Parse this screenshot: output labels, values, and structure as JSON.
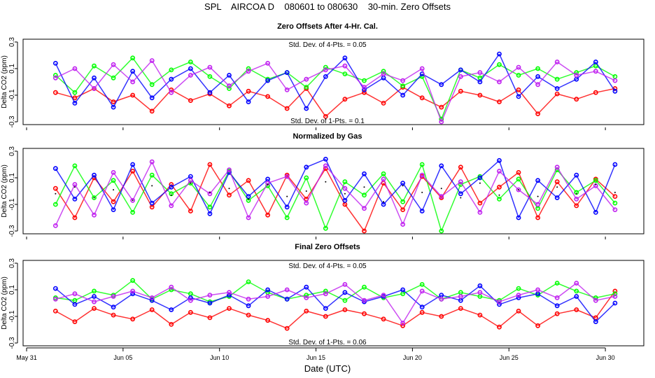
{
  "title": "SPL    AIRCOA D    080601 to 080630    30-min. Zero Offsets",
  "chart_data": [
    {
      "type": "scatter",
      "title": "Zero Offsets After 4-Hr. Cal.",
      "ylabel": "Delta CO2 (ppm)",
      "ylim": [
        -0.31,
        0.31
      ],
      "yticks": [
        "-0.3",
        "-0.1",
        "0.1",
        "0.3"
      ],
      "annotations": [
        "Std. Dev. of 4-Pts. = 0.05",
        "Std. Dev. of 1-Pts. = 0.1"
      ],
      "series": [
        {
          "color": "#ff0000",
          "values": [
            -0.08,
            -0.12,
            -0.05,
            -0.15,
            -0.1,
            -0.22,
            -0.06,
            -0.14,
            -0.09,
            -0.18,
            -0.07,
            -0.11,
            -0.2,
            -0.05,
            -0.26,
            -0.13,
            -0.08,
            -0.16,
            -0.04,
            -0.12,
            -0.19,
            -0.07,
            -0.1,
            -0.15,
            -0.06,
            -0.24,
            -0.09,
            -0.13,
            -0.08,
            -0.05
          ]
        },
        {
          "color": "#00ff00",
          "values": [
            0.05,
            -0.08,
            0.12,
            0.03,
            0.18,
            -0.02,
            0.09,
            0.15,
            0.04,
            -0.05,
            0.1,
            0.02,
            0.07,
            -0.04,
            0.11,
            0.06,
            0.01,
            0.08,
            -0.03,
            0.04,
            -0.28,
            0.09,
            0.03,
            0.13,
            0.05,
            0.1,
            0.02,
            0.07,
            0.12,
            0.04
          ]
        },
        {
          "color": "#0000ff",
          "values": [
            0.14,
            -0.16,
            0.03,
            -0.19,
            0.08,
            -0.12,
            0.02,
            0.1,
            -0.08,
            0.05,
            -0.15,
            0.01,
            0.07,
            -0.2,
            0.04,
            0.18,
            -0.06,
            0.03,
            -0.1,
            0.06,
            -0.02,
            0.09,
            0.0,
            0.21,
            -0.11,
            0.04,
            -0.05,
            0.02,
            0.15,
            -0.07
          ]
        },
        {
          "color": "#c020f0",
          "values": [
            0.03,
            0.1,
            -0.05,
            0.13,
            0.0,
            0.16,
            -0.08,
            0.05,
            0.11,
            -0.03,
            0.08,
            0.14,
            -0.06,
            0.02,
            0.09,
            0.12,
            -0.04,
            0.06,
            0.01,
            0.1,
            -0.3,
            0.04,
            0.07,
            0.0,
            0.11,
            -0.02,
            0.15,
            0.05,
            0.08,
            0.01
          ]
        }
      ]
    },
    {
      "type": "scatter",
      "title": "Normalized by Gas",
      "ylabel": "Delta CO2 (ppm)",
      "ylim": [
        -0.31,
        0.31
      ],
      "yticks": [
        "-0.3",
        "-0.1",
        "0.1",
        "0.3"
      ],
      "annotations": [],
      "series": [
        {
          "color": "#ff0000",
          "values": [
            0.02,
            -0.2,
            0.1,
            -0.08,
            0.15,
            -0.12,
            0.05,
            -0.15,
            0.2,
            -0.03,
            0.08,
            -0.18,
            0.12,
            -0.06,
            0.17,
            -0.1,
            -0.3,
            0.06,
            -0.14,
            0.11,
            -0.05,
            0.18,
            -0.09,
            0.03,
            0.14,
            -0.2,
            0.07,
            -0.11,
            0.09,
            -0.04
          ]
        },
        {
          "color": "#00ff00",
          "values": [
            -0.1,
            0.19,
            -0.05,
            0.08,
            -0.16,
            0.12,
            -0.02,
            0.06,
            -0.12,
            0.15,
            -0.07,
            0.04,
            -0.2,
            0.1,
            -0.28,
            0.07,
            -0.03,
            0.13,
            -0.08,
            0.2,
            -0.3,
            0.05,
            0.11,
            -0.06,
            0.09,
            -0.13,
            0.16,
            -0.01,
            0.08,
            -0.09
          ]
        },
        {
          "color": "#0000ff",
          "values": [
            0.17,
            -0.06,
            0.12,
            -0.14,
            0.2,
            -0.09,
            0.03,
            0.11,
            -0.17,
            0.14,
            -0.04,
            0.09,
            -0.12,
            0.18,
            0.24,
            -0.07,
            0.13,
            -0.1,
            0.06,
            -0.15,
            0.19,
            -0.02,
            0.1,
            0.23,
            -0.2,
            0.08,
            -0.05,
            0.12,
            -0.16,
            0.2
          ]
        },
        {
          "color": "#c020f0",
          "values": [
            -0.26,
            0.05,
            -0.18,
            0.14,
            -0.07,
            0.22,
            -0.11,
            0.08,
            -0.02,
            0.16,
            -0.2,
            0.06,
            0.11,
            -0.09,
            0.19,
            0.02,
            -0.13,
            0.09,
            -0.25,
            0.12,
            -0.04,
            0.07,
            -0.16,
            0.15,
            0.01,
            -0.1,
            0.18,
            -0.06,
            0.04,
            -0.14
          ]
        },
        {
          "color": "#000000",
          "marker": "dot",
          "values": [
            -0.02,
            0.03,
            -0.05,
            0.01,
            -0.07,
            0.04,
            -0.03,
            0.06,
            -0.01,
            0.02,
            -0.06,
            0.05,
            -0.04,
            0.0,
            0.07,
            -0.02,
            0.03,
            -0.08,
            0.04,
            -0.01,
            0.02,
            -0.05,
            0.06,
            -0.03,
            0.01,
            -0.04,
            0.03,
            -0.02,
            0.05,
            -0.01
          ]
        }
      ]
    },
    {
      "type": "scatter",
      "title": "Final Zero Offsets",
      "ylabel": "Delta CO2 (ppm)",
      "xlabel": "Date (UTC)",
      "ylim": [
        -0.31,
        0.31
      ],
      "yticks": [
        "-0.3",
        "-0.1",
        "0.1",
        "0.3"
      ],
      "xticks": [
        "May 31",
        "Jun 05",
        "Jun 10",
        "Jun 15",
        "Jun 20",
        "Jun 25",
        "Jun 30"
      ],
      "xlim": [
        "2008-05-30T19:00",
        "2008-07-02T00:00"
      ],
      "annotations": [
        "Std. Dev. of 4-Pts. = 0.05",
        "Std. Dev. of 1-Pts. = 0.06"
      ],
      "series": [
        {
          "color": "#ff0000",
          "values": [
            -0.06,
            -0.14,
            -0.04,
            -0.09,
            -0.12,
            -0.05,
            -0.16,
            -0.07,
            -0.11,
            -0.04,
            -0.09,
            -0.13,
            -0.19,
            -0.06,
            -0.1,
            -0.05,
            -0.08,
            -0.12,
            -0.17,
            -0.07,
            -0.1,
            -0.04,
            -0.09,
            -0.18,
            -0.06,
            -0.17,
            -0.08,
            -0.05,
            -0.11,
            0.09
          ]
        },
        {
          "color": "#00ff00",
          "values": [
            0.04,
            0.02,
            0.09,
            0.06,
            0.17,
            0.03,
            0.1,
            0.07,
            0.01,
            0.05,
            0.16,
            0.08,
            0.03,
            0.06,
            0.09,
            0.02,
            0.12,
            0.04,
            0.07,
            0.14,
            0.03,
            0.08,
            0.05,
            0.02,
            0.11,
            0.06,
            0.15,
            0.09,
            0.04,
            0.07
          ]
        },
        {
          "color": "#0000ff",
          "values": [
            0.11,
            -0.01,
            0.05,
            -0.03,
            0.07,
            0.02,
            -0.05,
            0.04,
            0.0,
            0.06,
            -0.02,
            0.1,
            0.03,
            0.12,
            -0.04,
            0.08,
            0.01,
            0.05,
            0.1,
            -0.03,
            0.06,
            0.02,
            0.13,
            -0.01,
            0.04,
            0.07,
            -0.02,
            0.05,
            -0.14,
            0.0
          ]
        },
        {
          "color": "#c020f0",
          "values": [
            0.03,
            0.07,
            0.01,
            0.05,
            0.09,
            0.04,
            0.12,
            0.02,
            0.06,
            0.08,
            0.03,
            0.05,
            0.1,
            0.04,
            0.07,
            0.14,
            0.02,
            0.06,
            -0.15,
            0.09,
            0.03,
            0.05,
            0.08,
            0.01,
            0.06,
            0.1,
            0.04,
            0.15,
            0.02,
            0.05
          ]
        }
      ]
    }
  ],
  "x": [
    "2008-06-01T12:00",
    "2008-06-02T12:00",
    "2008-06-03T12:00",
    "2008-06-04T12:00",
    "2008-06-05T12:00",
    "2008-06-06T12:00",
    "2008-06-07T12:00",
    "2008-06-08T12:00",
    "2008-06-09T12:00",
    "2008-06-10T12:00",
    "2008-06-11T12:00",
    "2008-06-12T12:00",
    "2008-06-13T12:00",
    "2008-06-14T12:00",
    "2008-06-15T12:00",
    "2008-06-16T12:00",
    "2008-06-17T12:00",
    "2008-06-18T12:00",
    "2008-06-19T12:00",
    "2008-06-20T12:00",
    "2008-06-21T12:00",
    "2008-06-22T12:00",
    "2008-06-23T12:00",
    "2008-06-24T12:00",
    "2008-06-25T12:00",
    "2008-06-26T12:00",
    "2008-06-27T12:00",
    "2008-06-28T12:00",
    "2008-06-29T12:00",
    "2008-06-30T12:00"
  ]
}
